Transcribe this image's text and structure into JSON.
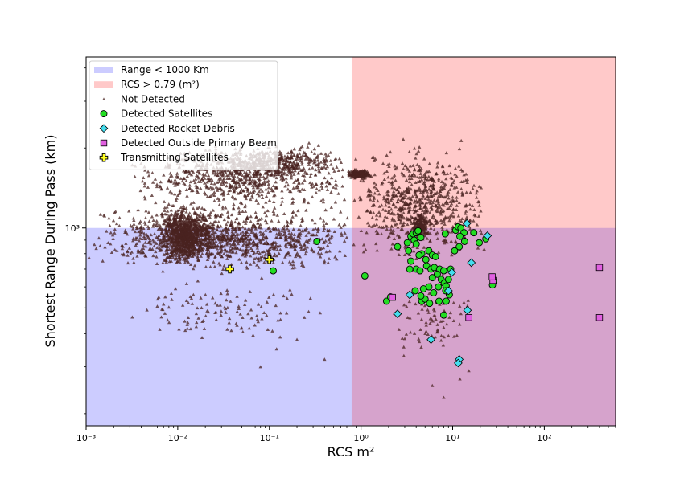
{
  "chart_data": {
    "type": "scatter",
    "xlabel": "RCS m²",
    "ylabel": "Shortest Range During Pass (km)",
    "x_scale": "log",
    "y_scale": "log",
    "xlim": [
      0.001,
      600
    ],
    "ylim": [
      180,
      4400
    ],
    "x_ticks": [
      {
        "value": 0.001,
        "label": "10⁻³"
      },
      {
        "value": 0.01,
        "label": "10⁻²"
      },
      {
        "value": 0.1,
        "label": "10⁻¹"
      },
      {
        "value": 1,
        "label": "10⁰"
      },
      {
        "value": 10,
        "label": "10¹"
      },
      {
        "value": 100,
        "label": "10²"
      }
    ],
    "y_ticks": [
      {
        "value": 1000,
        "label": "10³"
      }
    ],
    "legend_position": "top-left",
    "regions": [
      {
        "name": "Range < 1000 Km",
        "x_min": 0.001,
        "x_max": 600,
        "y_min": 180,
        "y_max": 1000,
        "color": "#ccccff"
      },
      {
        "name": "RCS > 0.79 (m²)",
        "x_min": 0.79,
        "x_max": 600,
        "y_min": 180,
        "y_max": 4400,
        "color": "#ffc9c9"
      }
    ],
    "overlap_color": "#d6a3cc",
    "series": [
      {
        "name": "Not Detected",
        "marker": "triangle",
        "color": "#4a2320",
        "clusters": [
          {
            "x_min": 0.001,
            "x_max": 0.9,
            "y_min": 650,
            "y_max": 1300,
            "count": 1100
          },
          {
            "x_min": 0.006,
            "x_max": 0.025,
            "y_min": 700,
            "y_max": 1250,
            "count": 900
          },
          {
            "x_min": 0.003,
            "x_max": 0.8,
            "y_min": 1100,
            "y_max": 2200,
            "count": 700
          },
          {
            "x_min": 0.02,
            "x_max": 0.6,
            "y_min": 1500,
            "y_max": 2100,
            "count": 350
          },
          {
            "x_min": 0.8,
            "x_max": 25,
            "y_min": 700,
            "y_max": 2200,
            "count": 700
          },
          {
            "x_min": 0.003,
            "x_max": 0.5,
            "y_min": 340,
            "y_max": 700,
            "count": 120
          },
          {
            "x_min": 0.7,
            "x_max": 1.3,
            "y_min": 1520,
            "y_max": 1680,
            "count": 160
          },
          {
            "x_min": 3.5,
            "x_max": 5.5,
            "y_min": 900,
            "y_max": 1150,
            "count": 150
          },
          {
            "x_min": 2,
            "x_max": 18,
            "y_min": 300,
            "y_max": 700,
            "count": 80
          }
        ],
        "points": [
          [
            0.4,
            320
          ],
          [
            0.2,
            380
          ],
          [
            0.08,
            300
          ],
          [
            0.12,
            350
          ],
          [
            0.05,
            420
          ],
          [
            12,
            270
          ],
          [
            8,
            230
          ],
          [
            6,
            255
          ],
          [
            15,
            290
          ]
        ]
      },
      {
        "name": "Detected Satellites",
        "marker": "circle",
        "color": "#22dd22",
        "points": [
          [
            0.33,
            890
          ],
          [
            0.11,
            690
          ],
          [
            1.1,
            660
          ],
          [
            1.9,
            530
          ],
          [
            2.5,
            850
          ],
          [
            3.2,
            880
          ],
          [
            3.5,
            930
          ],
          [
            3.7,
            950
          ],
          [
            4.0,
            960
          ],
          [
            4.2,
            975
          ],
          [
            4.5,
            920
          ],
          [
            3.8,
            900
          ],
          [
            4.0,
            870
          ],
          [
            3.3,
            820
          ],
          [
            4.6,
            800
          ],
          [
            5.1,
            760
          ],
          [
            5.5,
            820
          ],
          [
            6.0,
            790
          ],
          [
            6.5,
            780
          ],
          [
            5.2,
            720
          ],
          [
            5.8,
            700
          ],
          [
            6.3,
            710
          ],
          [
            7.2,
            700
          ],
          [
            8.0,
            690
          ],
          [
            4.0,
            700
          ],
          [
            4.4,
            690
          ],
          [
            3.4,
            700
          ],
          [
            6.8,
            670
          ],
          [
            7.5,
            640
          ],
          [
            8.1,
            620
          ],
          [
            8.5,
            605
          ],
          [
            8.4,
            580
          ],
          [
            9.2,
            560
          ],
          [
            5.5,
            600
          ],
          [
            4.8,
            590
          ],
          [
            3.9,
            580
          ],
          [
            4.6,
            530
          ],
          [
            5.0,
            540
          ],
          [
            5.6,
            520
          ],
          [
            4.5,
            555
          ],
          [
            6.2,
            570
          ],
          [
            7.1,
            530
          ],
          [
            8.5,
            530
          ],
          [
            8.0,
            470
          ],
          [
            8.3,
            950
          ],
          [
            10.8,
            980
          ],
          [
            11.5,
            1010
          ],
          [
            12.3,
            1000
          ],
          [
            13.3,
            960
          ],
          [
            12.0,
            930
          ],
          [
            13.5,
            890
          ],
          [
            11.8,
            850
          ],
          [
            10.5,
            820
          ],
          [
            19.5,
            880
          ],
          [
            23.0,
            910
          ],
          [
            17.0,
            960
          ],
          [
            28.0,
            630
          ],
          [
            27.2,
            610
          ],
          [
            2.1,
            550
          ],
          [
            9.5,
            700
          ],
          [
            7.0,
            600
          ],
          [
            6.0,
            650
          ],
          [
            9.0,
            640
          ],
          [
            3.5,
            750
          ],
          [
            4.3,
            790
          ]
        ]
      },
      {
        "name": "Detected Rocket Debris",
        "marker": "diamond",
        "color": "#44ddee",
        "points": [
          [
            2.5,
            475
          ],
          [
            3.4,
            560
          ],
          [
            5.8,
            380
          ],
          [
            9.0,
            580
          ],
          [
            9.8,
            680
          ],
          [
            11.8,
            320
          ],
          [
            11.5,
            310
          ],
          [
            14.5,
            490
          ],
          [
            16.0,
            740
          ],
          [
            24.0,
            935
          ],
          [
            14.3,
            1040
          ]
        ]
      },
      {
        "name": "Detected Outside Primary Beam",
        "marker": "square",
        "color": "#e060e0",
        "points": [
          [
            2.2,
            548
          ],
          [
            15.0,
            460
          ],
          [
            27.5,
            635
          ],
          [
            27.0,
            655
          ],
          [
            400.0,
            710
          ],
          [
            400.0,
            460
          ]
        ]
      },
      {
        "name": "Transmitting Satellites",
        "marker": "plus",
        "color": "#ffff22",
        "points": [
          [
            0.1,
            760
          ],
          [
            0.037,
            700
          ]
        ]
      }
    ]
  },
  "legend": [
    {
      "label": "Range < 1000 Km",
      "icon": "patch",
      "color": "#ccccff"
    },
    {
      "label": "RCS > 0.79 (m²)",
      "icon": "patch",
      "color": "#ffc9c9"
    },
    {
      "label": "Not Detected",
      "icon": "triangle",
      "color": "#4a2320"
    },
    {
      "label": "Detected Satellites",
      "icon": "circle",
      "color": "#22dd22"
    },
    {
      "label": "Detected Rocket Debris",
      "icon": "diamond",
      "color": "#44ddee"
    },
    {
      "label": "Detected Outside Primary Beam",
      "icon": "square",
      "color": "#e060e0"
    },
    {
      "label": "Transmitting Satellites",
      "icon": "plus",
      "color": "#ffff22"
    }
  ]
}
